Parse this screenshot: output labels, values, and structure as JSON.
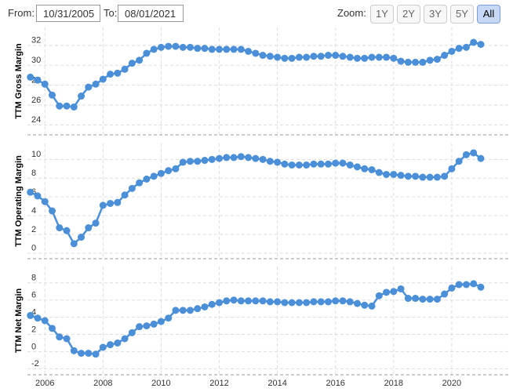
{
  "controls": {
    "from_label": "From:",
    "from_value": "10/31/2005",
    "to_label": "To:",
    "to_value": "08/01/2021",
    "zoom_label": "Zoom:",
    "zoom_buttons": [
      "1Y",
      "2Y",
      "3Y",
      "5Y",
      "All"
    ],
    "active_zoom": 4
  },
  "chart_data": [
    {
      "type": "line",
      "ylabel": "TTM Gross Margin",
      "color": "#4a8fd8",
      "grid": true,
      "show_xtick_labels": false,
      "xlim": [
        2005.4,
        2022.0
      ],
      "xticks": [
        2006,
        2008,
        2010,
        2012,
        2014,
        2016,
        2018,
        2020
      ],
      "ylim": [
        23,
        33.8
      ],
      "yticks": [
        24,
        26,
        28,
        30,
        32
      ],
      "x": [
        2005.5,
        2005.75,
        2006,
        2006.25,
        2006.5,
        2006.75,
        2007,
        2007.25,
        2007.5,
        2007.75,
        2008,
        2008.25,
        2008.5,
        2008.75,
        2009,
        2009.25,
        2009.5,
        2009.75,
        2010,
        2010.25,
        2010.5,
        2010.75,
        2011,
        2011.25,
        2011.5,
        2011.75,
        2012,
        2012.25,
        2012.5,
        2012.75,
        2013,
        2013.25,
        2013.5,
        2013.75,
        2014,
        2014.25,
        2014.5,
        2014.75,
        2015,
        2015.25,
        2015.5,
        2015.75,
        2016,
        2016.25,
        2016.5,
        2016.75,
        2017,
        2017.25,
        2017.5,
        2017.75,
        2018,
        2018.25,
        2018.5,
        2018.75,
        2019,
        2019.25,
        2019.5,
        2019.75,
        2020,
        2020.25,
        2020.5,
        2020.75,
        2021
      ],
      "values": [
        28.8,
        28.5,
        28.1,
        27.0,
        25.9,
        25.9,
        25.8,
        26.9,
        27.8,
        28.1,
        28.6,
        29.1,
        29.2,
        29.6,
        30.2,
        30.5,
        31.2,
        31.6,
        31.8,
        31.9,
        31.9,
        31.8,
        31.8,
        31.7,
        31.7,
        31.6,
        31.6,
        31.6,
        31.6,
        31.6,
        31.4,
        31.2,
        31.0,
        30.9,
        30.8,
        30.7,
        30.7,
        30.8,
        30.8,
        30.9,
        30.9,
        31.0,
        31.0,
        30.9,
        30.8,
        30.7,
        30.7,
        30.8,
        30.8,
        30.8,
        30.7,
        30.4,
        30.3,
        30.3,
        30.3,
        30.5,
        30.6,
        31.0,
        31.4,
        31.7,
        31.8,
        32.3,
        32.1
      ]
    },
    {
      "type": "line",
      "ylabel": "TTM Operating Margin",
      "color": "#4a8fd8",
      "grid": true,
      "show_xtick_labels": false,
      "xlim": [
        2005.4,
        2022.0
      ],
      "xticks": [
        2006,
        2008,
        2010,
        2012,
        2014,
        2016,
        2018,
        2020
      ],
      "ylim": [
        -0.6,
        11.7
      ],
      "yticks": [
        0,
        2,
        4,
        6,
        8,
        10
      ],
      "x": [
        2005.5,
        2005.75,
        2006,
        2006.25,
        2006.5,
        2006.75,
        2007,
        2007.25,
        2007.5,
        2007.75,
        2008,
        2008.25,
        2008.5,
        2008.75,
        2009,
        2009.25,
        2009.5,
        2009.75,
        2010,
        2010.25,
        2010.5,
        2010.75,
        2011,
        2011.25,
        2011.5,
        2011.75,
        2012,
        2012.25,
        2012.5,
        2012.75,
        2013,
        2013.25,
        2013.5,
        2013.75,
        2014,
        2014.25,
        2014.5,
        2014.75,
        2015,
        2015.25,
        2015.5,
        2015.75,
        2016,
        2016.25,
        2016.5,
        2016.75,
        2017,
        2017.25,
        2017.5,
        2017.75,
        2018,
        2018.25,
        2018.5,
        2018.75,
        2019,
        2019.25,
        2019.5,
        2019.75,
        2020,
        2020.25,
        2020.5,
        2020.75,
        2021
      ],
      "values": [
        6.5,
        6.1,
        5.5,
        4.5,
        2.7,
        2.4,
        1.0,
        1.7,
        2.7,
        3.2,
        5.1,
        5.3,
        5.4,
        6.2,
        6.9,
        7.5,
        7.9,
        8.2,
        8.5,
        8.8,
        9.0,
        9.7,
        9.8,
        9.8,
        9.9,
        10.0,
        10.1,
        10.2,
        10.2,
        10.3,
        10.2,
        10.1,
        10.0,
        9.8,
        9.7,
        9.5,
        9.4,
        9.4,
        9.4,
        9.5,
        9.5,
        9.5,
        9.6,
        9.6,
        9.4,
        9.2,
        9.0,
        8.9,
        8.6,
        8.4,
        8.4,
        8.3,
        8.2,
        8.2,
        8.1,
        8.1,
        8.1,
        8.2,
        9.0,
        9.8,
        10.5,
        10.7,
        10.1
      ]
    },
    {
      "type": "line",
      "ylabel": "TTM Net Margin",
      "color": "#4a8fd8",
      "grid": true,
      "show_xtick_labels": true,
      "xlim": [
        2005.4,
        2022.0
      ],
      "xticks": [
        2006,
        2008,
        2010,
        2012,
        2014,
        2016,
        2018,
        2020
      ],
      "ylim": [
        -2.7,
        9.9
      ],
      "yticks": [
        -2,
        0,
        2,
        4,
        6,
        8
      ],
      "x": [
        2005.5,
        2005.75,
        2006,
        2006.25,
        2006.5,
        2006.75,
        2007,
        2007.25,
        2007.5,
        2007.75,
        2008,
        2008.25,
        2008.5,
        2008.75,
        2009,
        2009.25,
        2009.5,
        2009.75,
        2010,
        2010.25,
        2010.5,
        2010.75,
        2011,
        2011.25,
        2011.5,
        2011.75,
        2012,
        2012.25,
        2012.5,
        2012.75,
        2013,
        2013.25,
        2013.5,
        2013.75,
        2014,
        2014.25,
        2014.5,
        2014.75,
        2015,
        2015.25,
        2015.5,
        2015.75,
        2016,
        2016.25,
        2016.5,
        2016.75,
        2017,
        2017.25,
        2017.5,
        2017.75,
        2018,
        2018.25,
        2018.5,
        2018.75,
        2019,
        2019.25,
        2019.5,
        2019.75,
        2020,
        2020.25,
        2020.5,
        2020.75,
        2021
      ],
      "values": [
        4.2,
        3.9,
        3.6,
        2.7,
        1.7,
        1.5,
        0.1,
        -0.2,
        -0.2,
        -0.3,
        0.5,
        0.8,
        1.0,
        1.5,
        2.2,
        2.9,
        3.0,
        3.2,
        3.5,
        3.9,
        4.8,
        4.8,
        4.8,
        5.0,
        5.2,
        5.5,
        5.7,
        5.9,
        6.0,
        5.9,
        5.9,
        5.9,
        5.9,
        5.8,
        5.8,
        5.7,
        5.7,
        5.7,
        5.7,
        5.8,
        5.8,
        5.8,
        5.9,
        5.9,
        5.8,
        5.6,
        5.4,
        5.3,
        6.5,
        6.9,
        7.0,
        7.3,
        6.2,
        6.2,
        6.1,
        6.1,
        6.1,
        6.7,
        7.4,
        7.8,
        7.8,
        7.9,
        7.5
      ]
    }
  ]
}
